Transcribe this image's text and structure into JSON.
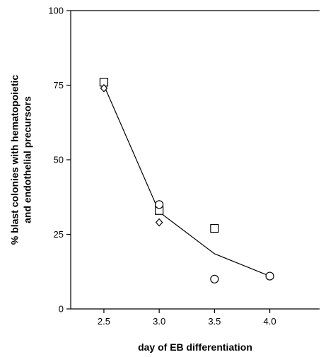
{
  "chart_data": {
    "type": "scatter",
    "title": "",
    "xlabel": "day of EB differentiation",
    "ylabel_lines": [
      "% blast colonies with hematopoietic",
      "and endothelial precursors"
    ],
    "xlim": [
      2.2,
      4.45
    ],
    "ylim": [
      0,
      100
    ],
    "xticks": [
      "2.5",
      "3.0",
      "3.5",
      "4.0"
    ],
    "yticks": [
      "0",
      "25",
      "50",
      "75",
      "100"
    ],
    "grid": false,
    "legend": "none",
    "series": [
      {
        "marker": "square",
        "points": [
          [
            2.5,
            76
          ],
          [
            3.0,
            33
          ],
          [
            3.5,
            27
          ]
        ]
      },
      {
        "marker": "diamond",
        "points": [
          [
            2.5,
            74
          ],
          [
            3.0,
            29
          ]
        ]
      },
      {
        "marker": "circle",
        "points": [
          [
            3.0,
            35
          ],
          [
            3.5,
            10
          ],
          [
            4.0,
            11
          ]
        ]
      },
      {
        "marker": "line",
        "points": [
          [
            2.5,
            75
          ],
          [
            3.0,
            32.5
          ],
          [
            3.5,
            18.5
          ],
          [
            4.0,
            11
          ]
        ]
      }
    ]
  }
}
